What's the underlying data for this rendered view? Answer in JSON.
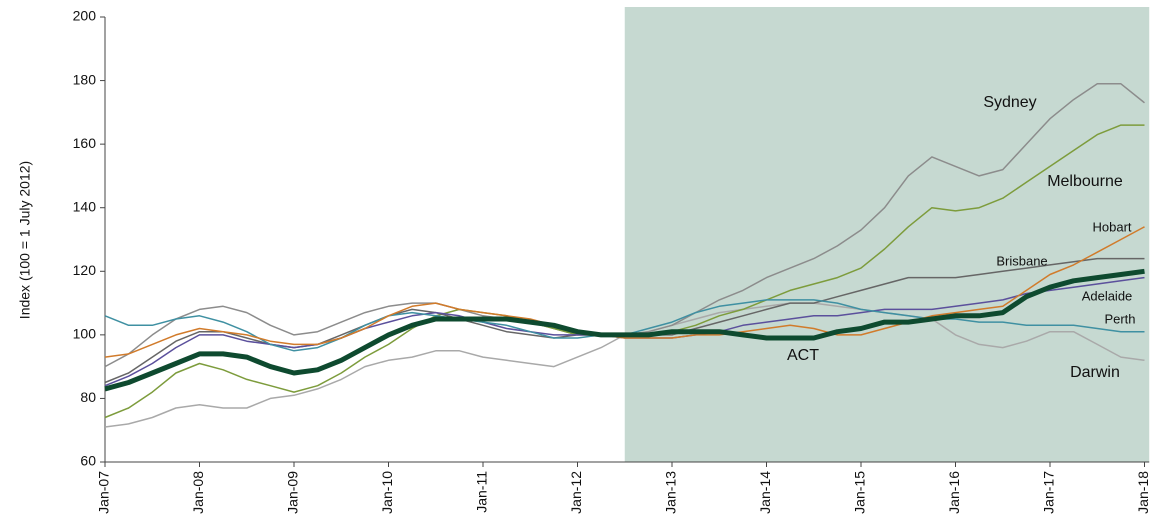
{
  "chart_data": {
    "type": "line",
    "y_label": "Index (100 = 1 July 2012)",
    "x": [
      2007,
      2007.25,
      2007.5,
      2007.75,
      2008,
      2008.25,
      2008.5,
      2008.75,
      2009,
      2009.25,
      2009.5,
      2009.75,
      2010,
      2010.25,
      2010.5,
      2010.75,
      2011,
      2011.25,
      2011.5,
      2011.75,
      2012,
      2012.25,
      2012.5,
      2012.75,
      2013,
      2013.25,
      2013.5,
      2013.75,
      2014,
      2014.25,
      2014.5,
      2014.75,
      2015,
      2015.25,
      2015.5,
      2015.75,
      2016,
      2016.25,
      2016.5,
      2016.75,
      2017,
      2017.25,
      2017.5,
      2017.75,
      2018
    ],
    "xlim": [
      2007,
      2018.05
    ],
    "xticks": [
      {
        "value": 2007,
        "label": "Jan-07"
      },
      {
        "value": 2008,
        "label": "Jan-08"
      },
      {
        "value": 2009,
        "label": "Jan-09"
      },
      {
        "value": 2010,
        "label": "Jan-10"
      },
      {
        "value": 2011,
        "label": "Jan-11"
      },
      {
        "value": 2012,
        "label": "Jan-12"
      },
      {
        "value": 2013,
        "label": "Jan-13"
      },
      {
        "value": 2014,
        "label": "Jan-14"
      },
      {
        "value": 2015,
        "label": "Jan-15"
      },
      {
        "value": 2016,
        "label": "Jan-16"
      },
      {
        "value": 2017,
        "label": "Jan-17"
      },
      {
        "value": 2018,
        "label": "Jan-18"
      }
    ],
    "ylim": [
      60,
      200
    ],
    "yticks": [
      60,
      80,
      100,
      120,
      140,
      160,
      180,
      200
    ],
    "grid": false,
    "shaded_xrange": [
      2012.5,
      2018.05
    ],
    "shade_color": "#c6d9d1",
    "series": [
      {
        "name": "Darwin",
        "color": "#a9a9a9",
        "width": 1.5,
        "values": [
          71,
          72,
          74,
          77,
          78,
          77,
          77,
          80,
          81,
          83,
          86,
          90,
          92,
          93,
          95,
          95,
          93,
          92,
          91,
          90,
          93,
          96,
          100,
          101,
          103,
          105,
          107,
          108,
          109,
          110,
          110,
          109,
          108,
          107,
          106,
          105,
          100,
          97,
          96,
          98,
          101,
          101,
          97,
          93,
          92
        ]
      },
      {
        "name": "Sydney",
        "color": "#8c8c8c",
        "width": 1.5,
        "values": [
          90,
          94,
          100,
          105,
          108,
          109,
          107,
          103,
          100,
          101,
          104,
          107,
          109,
          110,
          110,
          108,
          106,
          105,
          104,
          102,
          100,
          100,
          100,
          101,
          103,
          107,
          111,
          114,
          118,
          121,
          124,
          128,
          133,
          140,
          150,
          156,
          153,
          150,
          152,
          160,
          168,
          174,
          179,
          179,
          173
        ]
      },
      {
        "name": "Melbourne",
        "color": "#7d9c3c",
        "width": 1.5,
        "values": [
          74,
          77,
          82,
          88,
          91,
          89,
          86,
          84,
          82,
          84,
          88,
          93,
          97,
          102,
          106,
          108,
          107,
          106,
          104,
          102,
          100,
          100,
          100,
          100,
          101,
          103,
          106,
          108,
          111,
          114,
          116,
          118,
          121,
          127,
          134,
          140,
          139,
          140,
          143,
          148,
          153,
          158,
          163,
          166,
          166
        ]
      },
      {
        "name": "Brisbane",
        "color": "#666666",
        "width": 1.5,
        "values": [
          85,
          88,
          93,
          98,
          101,
          101,
          99,
          97,
          96,
          97,
          100,
          103,
          106,
          108,
          107,
          105,
          103,
          101,
          100,
          99,
          100,
          100,
          100,
          100,
          100,
          102,
          104,
          106,
          108,
          110,
          110,
          112,
          114,
          116,
          118,
          118,
          118,
          119,
          120,
          121,
          122,
          123,
          124,
          124,
          124
        ]
      },
      {
        "name": "Adelaide",
        "color": "#5b509c",
        "width": 1.5,
        "values": [
          84,
          87,
          91,
          96,
          100,
          100,
          98,
          97,
          96,
          97,
          99,
          102,
          104,
          106,
          107,
          106,
          104,
          102,
          101,
          100,
          100,
          100,
          99,
          99,
          99,
          100,
          101,
          103,
          104,
          105,
          106,
          106,
          107,
          108,
          108,
          108,
          109,
          110,
          111,
          113,
          114,
          115,
          116,
          117,
          118
        ]
      },
      {
        "name": "Perth",
        "color": "#3f90a2",
        "width": 1.5,
        "values": [
          106,
          103,
          103,
          105,
          106,
          104,
          101,
          97,
          95,
          96,
          99,
          103,
          106,
          107,
          106,
          105,
          104,
          103,
          101,
          99,
          99,
          100,
          100,
          102,
          104,
          107,
          109,
          110,
          111,
          111,
          111,
          110,
          108,
          107,
          106,
          105,
          105,
          104,
          104,
          103,
          103,
          103,
          102,
          101,
          101
        ]
      },
      {
        "name": "Hobart",
        "color": "#d17b2b",
        "width": 1.5,
        "values": [
          93,
          94,
          97,
          100,
          102,
          101,
          100,
          98,
          97,
          97,
          99,
          102,
          106,
          109,
          110,
          108,
          107,
          106,
          105,
          103,
          101,
          100,
          99,
          99,
          99,
          100,
          100,
          101,
          102,
          103,
          102,
          100,
          100,
          102,
          104,
          106,
          107,
          108,
          109,
          114,
          119,
          122,
          126,
          130,
          134
        ]
      },
      {
        "name": "ACT",
        "color": "#0e4a2f",
        "width": 5,
        "values": [
          83,
          85,
          88,
          91,
          94,
          94,
          93,
          90,
          88,
          89,
          92,
          96,
          100,
          103,
          105,
          105,
          105,
          105,
          104,
          103,
          101,
          100,
          100,
          100,
          101,
          101,
          101,
          100,
          99,
          99,
          99,
          101,
          102,
          104,
          104,
          105,
          106,
          106,
          107,
          112,
          115,
          117,
          118,
          119,
          120
        ]
      }
    ]
  }
}
